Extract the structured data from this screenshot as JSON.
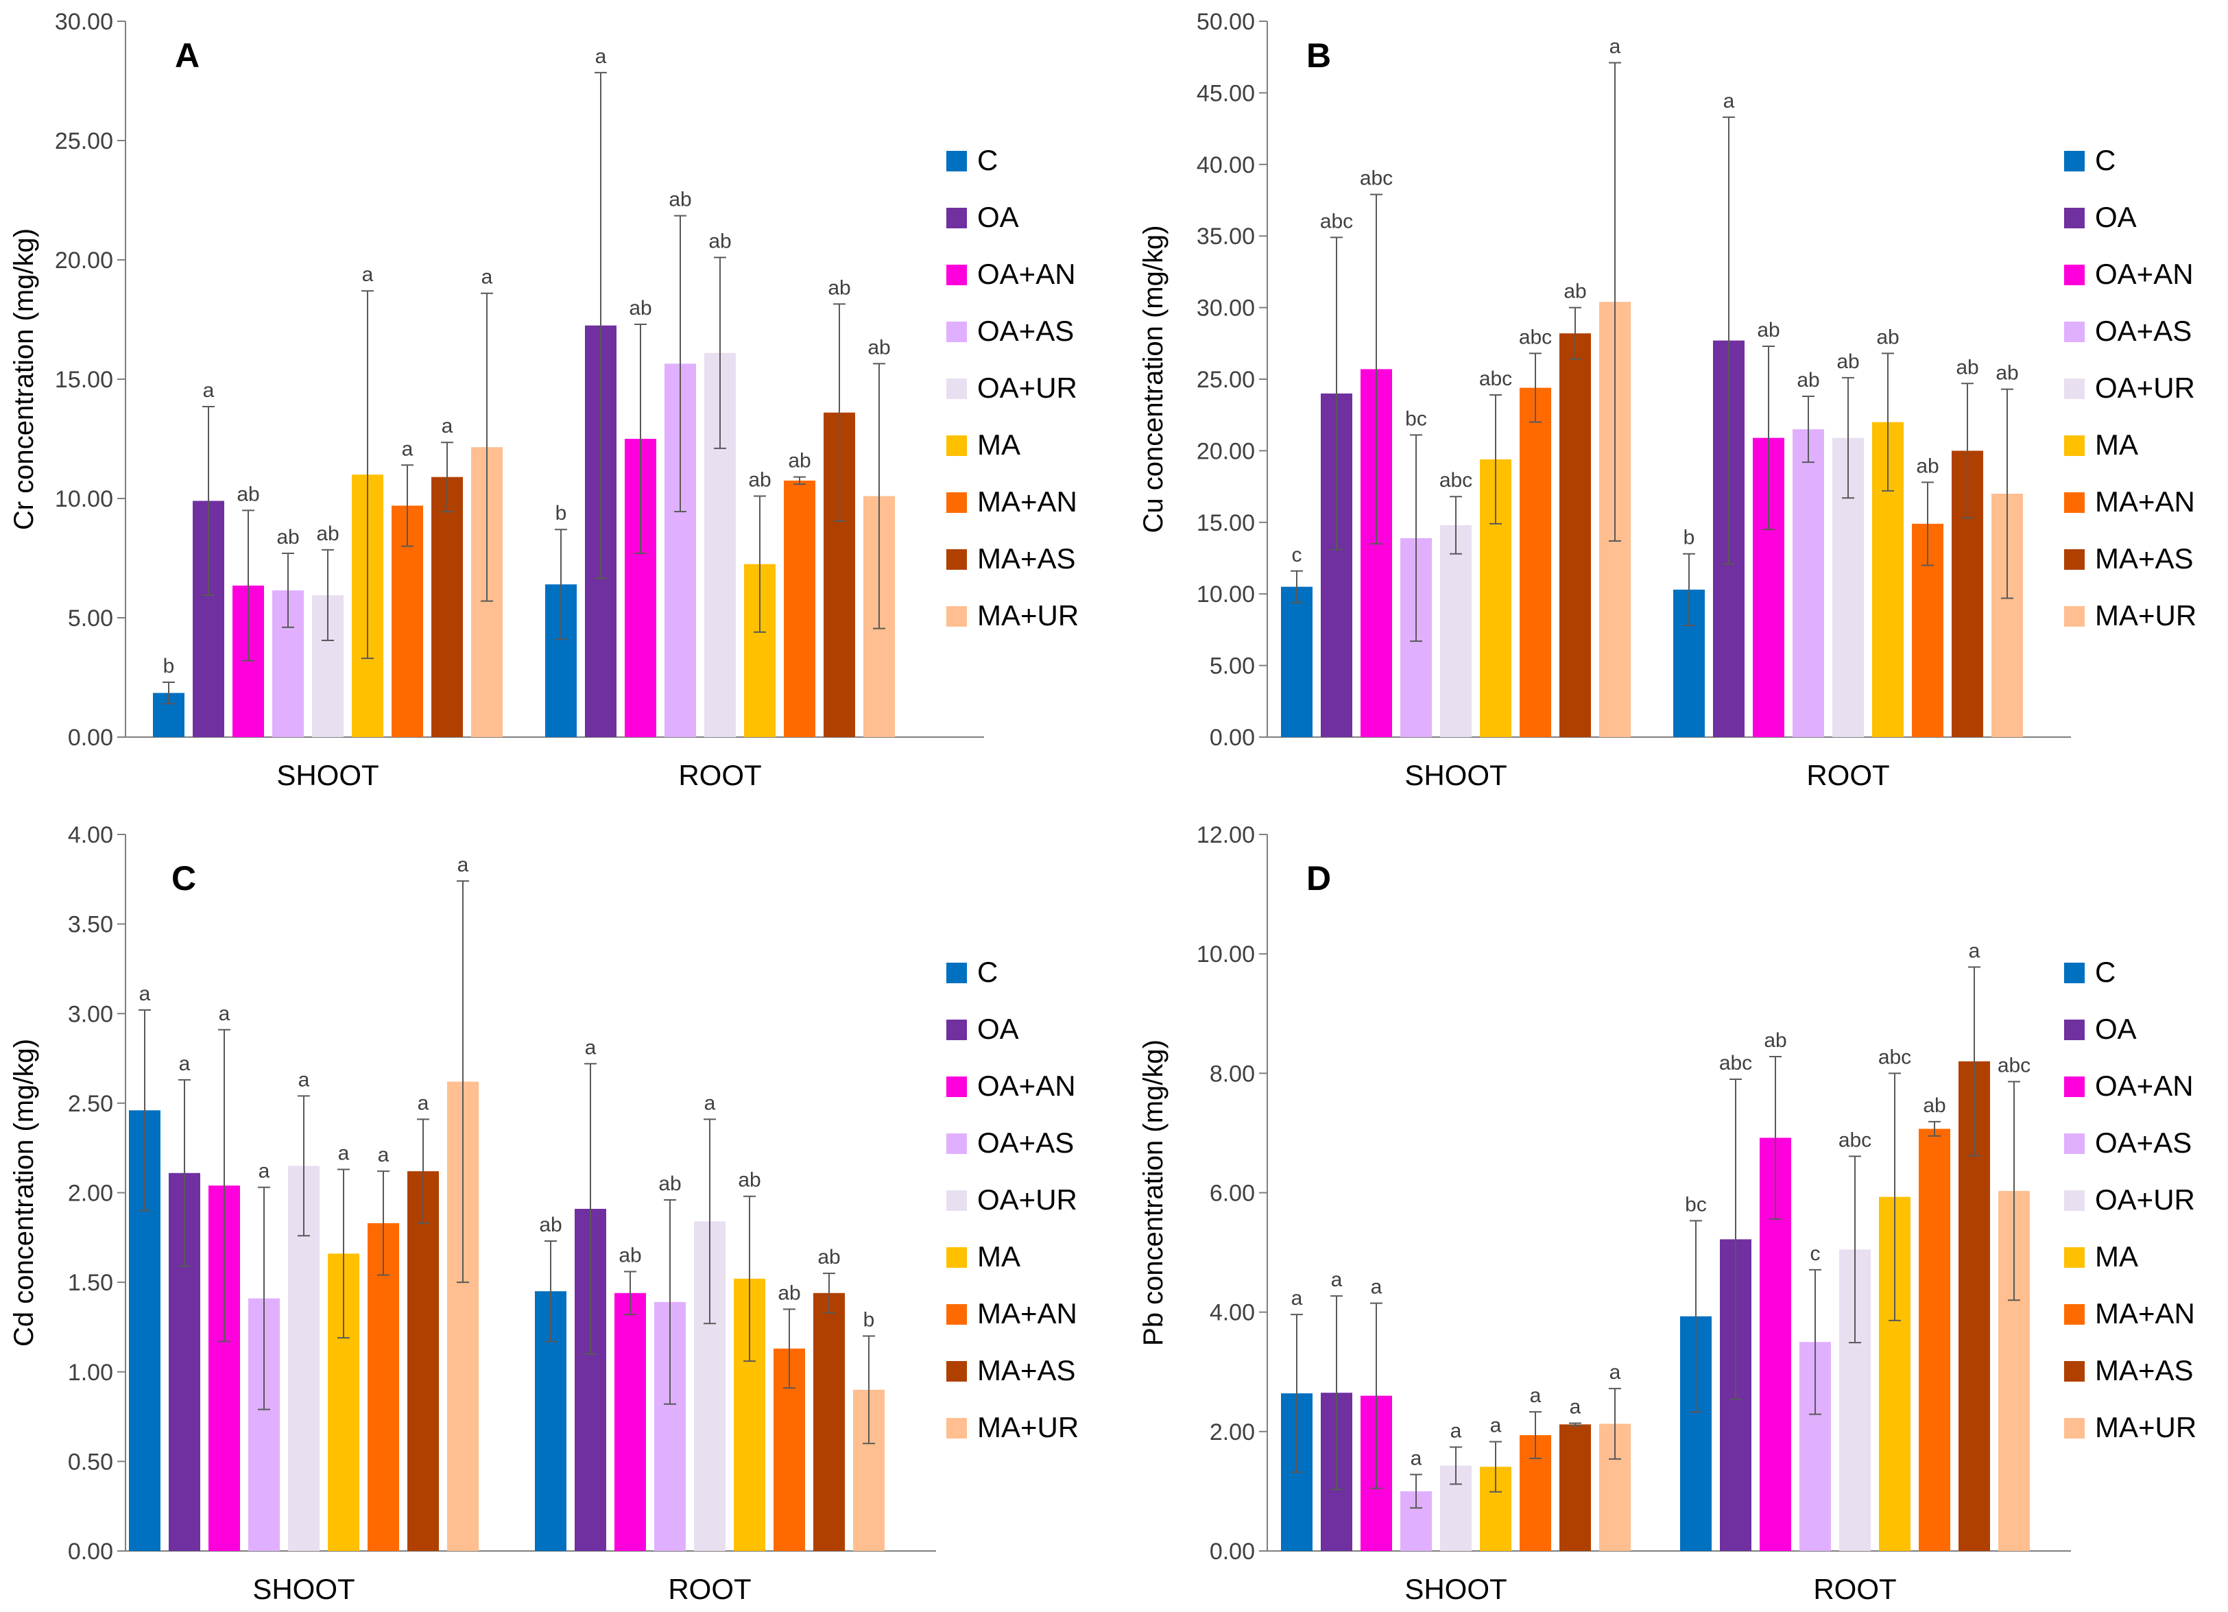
{
  "legend": [
    "C",
    "OA",
    "OA+AN",
    "OA+AS",
    "OA+UR",
    "MA",
    "MA+AN",
    "MA+AS",
    "MA+UR"
  ],
  "colors": [
    "#0070C0",
    "#7030A0",
    "#FF00DD",
    "#E0B0FF",
    "#E8DFF0",
    "#FFC000",
    "#FF6A00",
    "#B04000",
    "#FFBF90"
  ],
  "groups": [
    "SHOOT",
    "ROOT"
  ],
  "chart_data": [
    {
      "panel": "A",
      "type": "bar",
      "ylabel": "Cr concentration (mg/kg)",
      "ylim": [
        0,
        30
      ],
      "yticks": [
        "0.00",
        "5.00",
        "10.00",
        "15.00",
        "20.00",
        "25.00",
        "30.00"
      ],
      "categories": [
        "SHOOT",
        "ROOT"
      ],
      "series": [
        {
          "name": "C",
          "values": [
            1.85,
            6.4
          ],
          "errors": [
            0.45,
            2.3
          ],
          "letters": [
            "b",
            "b"
          ]
        },
        {
          "name": "OA",
          "values": [
            9.9,
            17.25
          ],
          "errors": [
            3.95,
            10.6
          ],
          "letters": [
            "a",
            "a"
          ]
        },
        {
          "name": "OA+AN",
          "values": [
            6.35,
            12.5
          ],
          "errors": [
            3.15,
            4.8
          ],
          "letters": [
            "ab",
            "ab"
          ]
        },
        {
          "name": "OA+AS",
          "values": [
            6.15,
            15.65
          ],
          "errors": [
            1.55,
            6.2
          ],
          "letters": [
            "ab",
            "ab"
          ]
        },
        {
          "name": "OA+UR",
          "values": [
            5.95,
            16.1
          ],
          "errors": [
            1.9,
            4.0
          ],
          "letters": [
            "ab",
            "ab"
          ]
        },
        {
          "name": "MA",
          "values": [
            11.0,
            7.25
          ],
          "errors": [
            7.7,
            2.85
          ],
          "letters": [
            "a",
            "ab"
          ]
        },
        {
          "name": "MA+AN",
          "values": [
            9.7,
            10.75
          ],
          "errors": [
            1.7,
            0.15
          ],
          "letters": [
            "a",
            "ab"
          ]
        },
        {
          "name": "MA+AS",
          "values": [
            10.9,
            13.6
          ],
          "errors": [
            1.45,
            4.55
          ],
          "letters": [
            "a",
            "ab"
          ]
        },
        {
          "name": "MA+UR",
          "values": [
            12.15,
            10.1
          ],
          "errors": [
            6.45,
            5.55
          ],
          "letters": [
            "a",
            "ab"
          ]
        }
      ]
    },
    {
      "panel": "B",
      "type": "bar",
      "ylabel": "Cu concentration (mg/kg)",
      "ylim": [
        0,
        50
      ],
      "yticks": [
        "0.00",
        "5.00",
        "10.00",
        "15.00",
        "20.00",
        "25.00",
        "30.00",
        "35.00",
        "40.00",
        "45.00",
        "50.00"
      ],
      "categories": [
        "SHOOT",
        "ROOT"
      ],
      "series": [
        {
          "name": "C",
          "values": [
            10.5,
            10.3
          ],
          "errors": [
            1.1,
            2.5
          ],
          "letters": [
            "c",
            "b"
          ]
        },
        {
          "name": "OA",
          "values": [
            24.0,
            27.7
          ],
          "errors": [
            10.9,
            15.6
          ],
          "letters": [
            "abc",
            "a"
          ]
        },
        {
          "name": "OA+AN",
          "values": [
            25.7,
            20.9
          ],
          "errors": [
            12.2,
            6.4
          ],
          "letters": [
            "abc",
            "ab"
          ]
        },
        {
          "name": "OA+AS",
          "values": [
            13.9,
            21.5
          ],
          "errors": [
            7.2,
            2.3
          ],
          "letters": [
            "bc",
            "ab"
          ]
        },
        {
          "name": "OA+UR",
          "values": [
            14.8,
            20.9
          ],
          "errors": [
            2.0,
            4.2
          ],
          "letters": [
            "abc",
            "ab"
          ]
        },
        {
          "name": "MA",
          "values": [
            19.4,
            22.0
          ],
          "errors": [
            4.5,
            4.8
          ],
          "letters": [
            "abc",
            "ab"
          ]
        },
        {
          "name": "MA+AN",
          "values": [
            24.4,
            14.9
          ],
          "errors": [
            2.4,
            2.9
          ],
          "letters": [
            "abc",
            "ab"
          ]
        },
        {
          "name": "MA+AS",
          "values": [
            28.2,
            20.0
          ],
          "errors": [
            1.8,
            4.7
          ],
          "letters": [
            "ab",
            "ab"
          ]
        },
        {
          "name": "MA+UR",
          "values": [
            30.4,
            17.0
          ],
          "errors": [
            16.7,
            7.3
          ],
          "letters": [
            "a",
            "ab"
          ]
        }
      ]
    },
    {
      "panel": "C",
      "type": "bar",
      "ylabel": "Cd concentration (mg/kg)",
      "ylim": [
        0,
        4
      ],
      "yticks": [
        "0.00",
        "0.50",
        "1.00",
        "1.50",
        "2.00",
        "2.50",
        "3.00",
        "3.50",
        "4.00"
      ],
      "categories": [
        "SHOOT",
        "ROOT"
      ],
      "series": [
        {
          "name": "C",
          "values": [
            2.46,
            1.45
          ],
          "errors": [
            0.56,
            0.28
          ],
          "letters": [
            "a",
            "ab"
          ]
        },
        {
          "name": "OA",
          "values": [
            2.11,
            1.91
          ],
          "errors": [
            0.52,
            0.81
          ],
          "letters": [
            "a",
            "a"
          ]
        },
        {
          "name": "OA+AN",
          "values": [
            2.04,
            1.44
          ],
          "errors": [
            0.87,
            0.12
          ],
          "letters": [
            "a",
            "ab"
          ]
        },
        {
          "name": "OA+AS",
          "values": [
            1.41,
            1.39
          ],
          "errors": [
            0.62,
            0.57
          ],
          "letters": [
            "a",
            "ab"
          ]
        },
        {
          "name": "OA+UR",
          "values": [
            2.15,
            1.84
          ],
          "errors": [
            0.39,
            0.57
          ],
          "letters": [
            "a",
            "a"
          ]
        },
        {
          "name": "MA",
          "values": [
            1.66,
            1.52
          ],
          "errors": [
            0.47,
            0.46
          ],
          "letters": [
            "a",
            "ab"
          ]
        },
        {
          "name": "MA+AN",
          "values": [
            1.83,
            1.13
          ],
          "errors": [
            0.29,
            0.22
          ],
          "letters": [
            "a",
            "ab"
          ]
        },
        {
          "name": "MA+AS",
          "values": [
            2.12,
            1.44
          ],
          "errors": [
            0.29,
            0.11
          ],
          "letters": [
            "a",
            "ab"
          ]
        },
        {
          "name": "MA+UR",
          "values": [
            2.62,
            0.9
          ],
          "errors": [
            1.12,
            0.3
          ],
          "letters": [
            "a",
            "b"
          ]
        }
      ]
    },
    {
      "panel": "D",
      "type": "bar",
      "ylabel": "Pb concentration (mg/kg)",
      "ylim": [
        0,
        12
      ],
      "yticks": [
        "0.00",
        "2.00",
        "4.00",
        "6.00",
        "8.00",
        "10.00",
        "12.00"
      ],
      "categories": [
        "SHOOT",
        "ROOT"
      ],
      "series": [
        {
          "name": "C",
          "values": [
            2.64,
            3.93
          ],
          "errors": [
            1.32,
            1.6
          ],
          "letters": [
            "a",
            "bc"
          ]
        },
        {
          "name": "OA",
          "values": [
            2.65,
            5.22
          ],
          "errors": [
            1.62,
            2.68
          ],
          "letters": [
            "a",
            "abc"
          ]
        },
        {
          "name": "OA+AN",
          "values": [
            2.6,
            6.92
          ],
          "errors": [
            1.55,
            1.36
          ],
          "letters": [
            "a",
            "ab"
          ]
        },
        {
          "name": "OA+AS",
          "values": [
            1.0,
            3.5
          ],
          "errors": [
            0.28,
            1.21
          ],
          "letters": [
            "a",
            "c"
          ]
        },
        {
          "name": "OA+UR",
          "values": [
            1.43,
            5.05
          ],
          "errors": [
            0.31,
            1.56
          ],
          "letters": [
            "a",
            "abc"
          ]
        },
        {
          "name": "MA",
          "values": [
            1.41,
            5.93
          ],
          "errors": [
            0.42,
            2.07
          ],
          "letters": [
            "a",
            "abc"
          ]
        },
        {
          "name": "MA+AN",
          "values": [
            1.94,
            7.07
          ],
          "errors": [
            0.39,
            0.12
          ],
          "letters": [
            "a",
            "ab"
          ]
        },
        {
          "name": "MA+AS",
          "values": [
            2.12,
            8.2
          ],
          "errors": [
            0.02,
            1.58
          ],
          "letters": [
            "a",
            "a"
          ]
        },
        {
          "name": "MA+UR",
          "values": [
            2.13,
            6.03
          ],
          "errors": [
            0.59,
            1.83
          ],
          "letters": [
            "a",
            "abc"
          ]
        }
      ]
    }
  ]
}
